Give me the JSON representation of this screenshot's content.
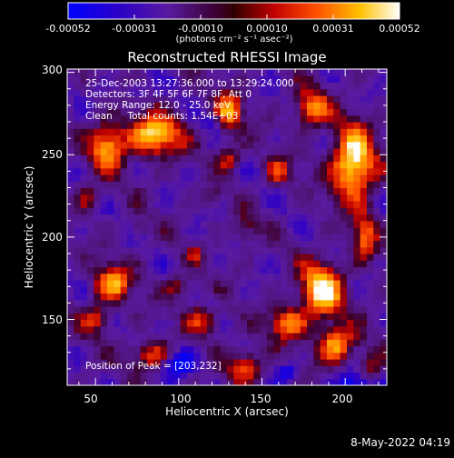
{
  "chart_data": {
    "type": "heatmap",
    "title": "Reconstructed RHESSI Image",
    "xlabel": "Heliocentric X (arcsec)",
    "ylabel": "Heliocentric Y (arcsec)",
    "xlim": [
      33,
      225
    ],
    "ylim": [
      110,
      302
    ],
    "x_ticks": [
      50,
      100,
      150,
      200
    ],
    "y_ticks": [
      150,
      200,
      250,
      300
    ],
    "colorbar": {
      "ticks": [
        "-0.00052",
        "-0.00031",
        "-0.00010",
        "0.00010",
        "0.00031",
        "0.00052"
      ],
      "range": [
        -0.00052,
        0.00052
      ],
      "unit_label": "(photons cm⁻² s⁻¹ asec⁻²)"
    },
    "annotations": [
      "25-Dec-2003 13:27:36.000 to 13:29:24.000",
      "Detectors: 3F 4F 5F 6F 7F 8F, Att 0",
      "Energy Range: 12.0 - 25.0 keV",
      "Clean     Total counts: 1.54E+03"
    ],
    "peak_label": "Position of Peak = [203,232]",
    "peak_position": [
      203,
      232
    ],
    "hotspots": [
      {
        "x": 205,
        "y": 245,
        "sx": 9,
        "sy": 16,
        "amp": 1.0
      },
      {
        "x": 85,
        "y": 262,
        "sx": 12,
        "sy": 9,
        "amp": 0.85
      },
      {
        "x": 57,
        "y": 255,
        "sx": 7,
        "sy": 10,
        "amp": 0.75
      },
      {
        "x": 130,
        "y": 276,
        "sx": 6,
        "sy": 9,
        "amp": 0.65
      },
      {
        "x": 180,
        "y": 278,
        "sx": 7,
        "sy": 8,
        "amp": 0.7
      },
      {
        "x": 130,
        "y": 248,
        "sx": 5,
        "sy": 5,
        "amp": 0.45
      },
      {
        "x": 160,
        "y": 240,
        "sx": 6,
        "sy": 6,
        "amp": 0.45
      },
      {
        "x": 186,
        "y": 168,
        "sx": 9,
        "sy": 12,
        "amp": 0.9
      },
      {
        "x": 165,
        "y": 148,
        "sx": 8,
        "sy": 7,
        "amp": 0.65
      },
      {
        "x": 195,
        "y": 135,
        "sx": 8,
        "sy": 8,
        "amp": 0.75
      },
      {
        "x": 140,
        "y": 122,
        "sx": 8,
        "sy": 7,
        "amp": 0.55
      },
      {
        "x": 60,
        "y": 172,
        "sx": 8,
        "sy": 8,
        "amp": 0.7
      },
      {
        "x": 50,
        "y": 150,
        "sx": 6,
        "sy": 6,
        "amp": 0.45
      },
      {
        "x": 100,
        "y": 170,
        "sx": 6,
        "sy": 5,
        "amp": 0.4
      },
      {
        "x": 115,
        "y": 150,
        "sx": 7,
        "sy": 7,
        "amp": 0.5
      },
      {
        "x": 85,
        "y": 128,
        "sx": 10,
        "sy": 6,
        "amp": 0.6
      },
      {
        "x": 212,
        "y": 200,
        "sx": 5,
        "sy": 10,
        "amp": 0.55
      },
      {
        "x": 140,
        "y": 205,
        "sx": 5,
        "sy": 6,
        "amp": 0.35
      },
      {
        "x": 110,
        "y": 190,
        "sx": 4,
        "sy": 4,
        "amp": 0.3
      },
      {
        "x": 215,
        "y": 120,
        "sx": 5,
        "sy": 6,
        "amp": 0.45
      },
      {
        "x": 75,
        "y": 205,
        "sx": 4,
        "sy": 4,
        "amp": 0.25
      },
      {
        "x": 45,
        "y": 225,
        "sx": 5,
        "sy": 6,
        "amp": 0.35
      },
      {
        "x": 120,
        "y": 225,
        "sx": 4,
        "sy": 4,
        "amp": 0.25
      }
    ],
    "coldspots": [
      {
        "x": 100,
        "y": 125,
        "sx": 8,
        "sy": 6,
        "amp": 0.9
      },
      {
        "x": 205,
        "y": 112,
        "sx": 8,
        "sy": 5,
        "amp": 0.8
      },
      {
        "x": 165,
        "y": 118,
        "sx": 4,
        "sy": 4,
        "amp": 0.6
      },
      {
        "x": 120,
        "y": 270,
        "sx": 4,
        "sy": 3,
        "amp": 0.5
      },
      {
        "x": 75,
        "y": 290,
        "sx": 5,
        "sy": 3,
        "amp": 0.45
      },
      {
        "x": 120,
        "y": 160,
        "sx": 3,
        "sy": 3,
        "amp": 0.4
      }
    ]
  },
  "footer": {
    "timestamp": "8-May-2022 04:19"
  }
}
